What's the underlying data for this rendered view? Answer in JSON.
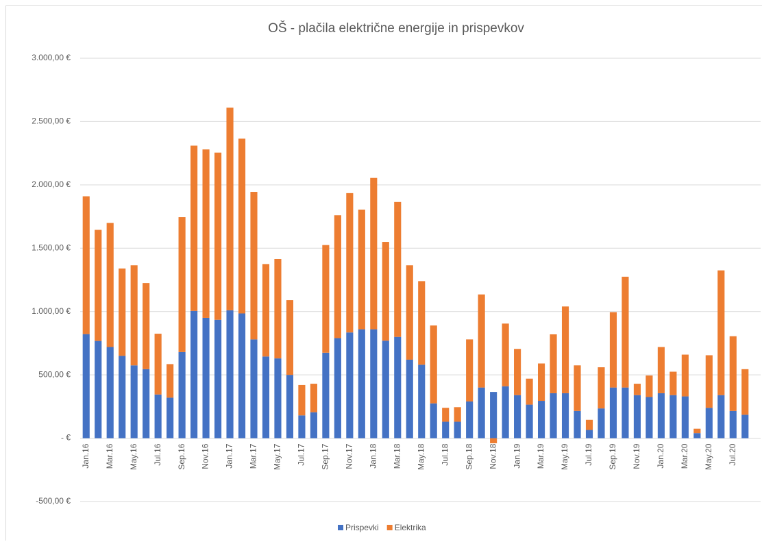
{
  "chart_data": {
    "type": "bar",
    "stacked": true,
    "title": "OŠ - plačila električne energije in prispevkov",
    "categories": [
      "Jan.16",
      null,
      "Mar.16",
      null,
      "May.16",
      null,
      "Jul.16",
      null,
      "Sep.16",
      null,
      "Nov.16",
      null,
      "Jan.17",
      null,
      "Mar.17",
      null,
      "May.17",
      null,
      "Jul.17",
      null,
      "Sep.17",
      null,
      "Nov.17",
      null,
      "Jan.18",
      null,
      "Mar.18",
      null,
      "May.18",
      null,
      "Jul.18",
      null,
      "Sep.18",
      null,
      "Nov.18",
      null,
      "Jan.19",
      null,
      "Mar.19",
      null,
      "May.19",
      null,
      "Jul.19",
      null,
      "Sep.19",
      null,
      "Nov.19",
      null,
      "Jan.20",
      null,
      "Mar.20",
      null,
      "May.20",
      null,
      "Jul.20",
      null
    ],
    "series": [
      {
        "name": "Prispevki",
        "color": "#4472c4",
        "values": [
          822,
          768,
          720,
          650,
          575,
          545,
          345,
          320,
          680,
          1005,
          950,
          935,
          1010,
          985,
          780,
          645,
          630,
          500,
          180,
          205,
          675,
          790,
          835,
          860,
          860,
          770,
          800,
          620,
          580,
          275,
          130,
          130,
          290,
          400,
          365,
          410,
          340,
          265,
          295,
          355,
          355,
          215,
          65,
          235,
          400,
          400,
          340,
          325,
          355,
          340,
          330,
          40,
          240,
          340,
          215,
          185
        ]
      },
      {
        "name": "Elektrika",
        "color": "#ed7d31",
        "values": [
          1088,
          877,
          980,
          690,
          790,
          680,
          480,
          265,
          1065,
          1305,
          1330,
          1320,
          1600,
          1380,
          1165,
          730,
          785,
          590,
          240,
          225,
          850,
          970,
          1100,
          945,
          1195,
          780,
          1065,
          745,
          660,
          615,
          110,
          115,
          490,
          735,
          -40,
          495,
          365,
          205,
          295,
          465,
          685,
          360,
          80,
          325,
          595,
          875,
          90,
          170,
          365,
          185,
          330,
          35,
          415,
          985,
          590,
          360
        ]
      }
    ],
    "ylim": [
      -500,
      3000
    ],
    "yticks": [
      {
        "value": -500,
        "label": "-500,00 €"
      },
      {
        "value": 0,
        "label": "-   €"
      },
      {
        "value": 500,
        "label": "500,00 €"
      },
      {
        "value": 1000,
        "label": "1.000,00 €"
      },
      {
        "value": 1500,
        "label": "1.500,00 €"
      },
      {
        "value": 2000,
        "label": "2.000,00 €"
      },
      {
        "value": 2500,
        "label": "2.500,00 €"
      },
      {
        "value": 3000,
        "label": "3.000,00 €"
      }
    ],
    "grid": true,
    "legend": "bottom"
  }
}
